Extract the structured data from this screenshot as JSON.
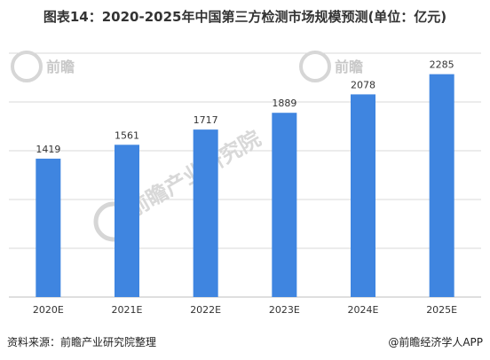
{
  "chart_data": {
    "type": "bar",
    "title": "图表14：2020-2025年中国第三方检测市场规模预测(单位：亿元)",
    "categories": [
      "2020E",
      "2021E",
      "2022E",
      "2023E",
      "2024E",
      "2025E"
    ],
    "values": [
      1419,
      1561,
      1717,
      1889,
      2078,
      2285
    ],
    "xlabel": "",
    "ylabel": "",
    "ylim": [
      0,
      2500
    ],
    "grid": true,
    "legend": "none",
    "colors": {
      "bar": "#3f85e0",
      "grid": "#d9d9d9",
      "label": "#333333"
    }
  },
  "footer": {
    "source": "资料来源：前瞻产业研究院整理",
    "brand": "@前瞻经济学人APP"
  },
  "watermark": {
    "text": "前瞻产业研究院",
    "logo_text": "前瞻"
  }
}
